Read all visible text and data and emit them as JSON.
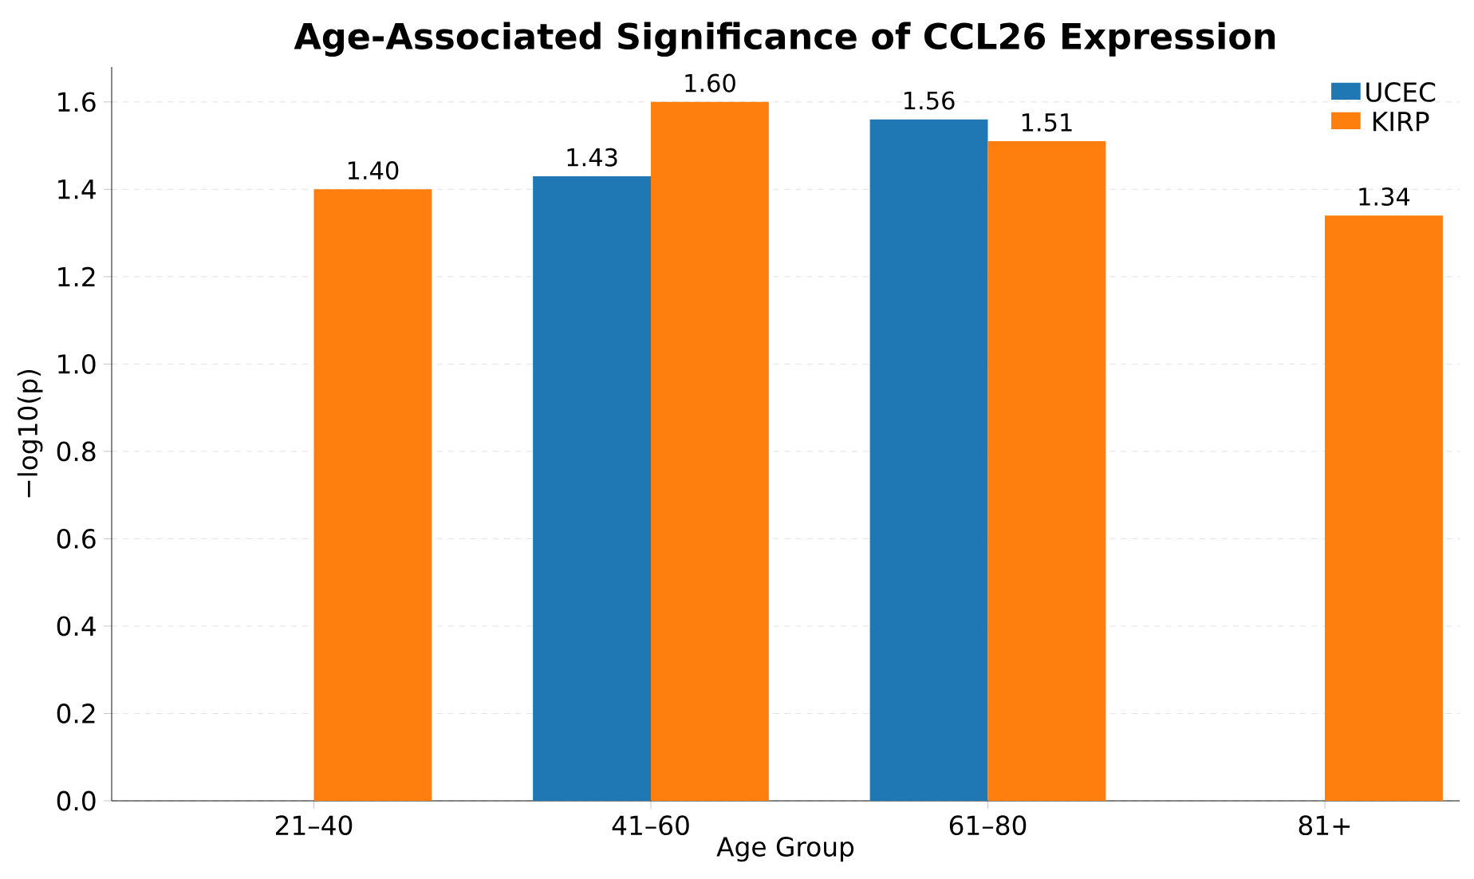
{
  "chart_data": {
    "type": "bar",
    "title": "Age-Associated Significance of CCL26 Expression",
    "xlabel": "Age Group",
    "ylabel": "−log10(p)",
    "categories": [
      "21–40",
      "41–60",
      "61–80",
      "81+"
    ],
    "series": [
      {
        "name": "UCEC",
        "color": "#1f77b4",
        "values": [
          null,
          1.43,
          1.56,
          null
        ],
        "value_labels": [
          null,
          "1.43",
          "1.56",
          null
        ]
      },
      {
        "name": "KIRP",
        "color": "#ff7f0e",
        "values": [
          1.4,
          1.6,
          1.51,
          1.34
        ],
        "value_labels": [
          "1.40",
          "1.60",
          "1.51",
          "1.34"
        ]
      }
    ],
    "ylim": [
      0,
      1.68
    ],
    "yticks": [
      {
        "value": 0,
        "label": "0.0"
      },
      0.2,
      0.4,
      0.6,
      0.8,
      {
        "value": 1.0,
        "label": "1.0"
      },
      1.2,
      1.4,
      1.6
    ],
    "grid": "y",
    "legend": "top right"
  }
}
